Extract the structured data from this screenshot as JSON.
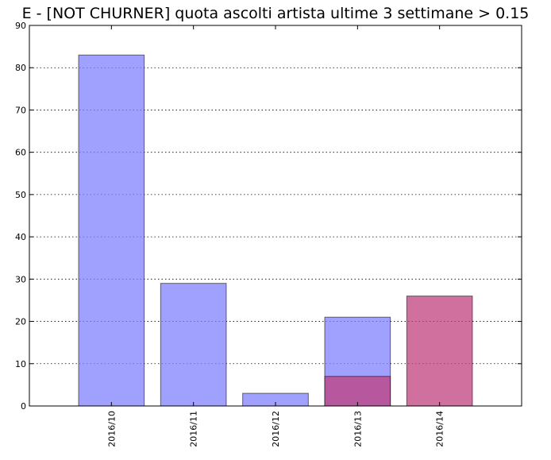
{
  "chart_data": {
    "type": "bar",
    "title": "E - [NOT CHURNER] quota ascolti artista ultime 3 settimane > 0.15",
    "categories": [
      "2016/10",
      "2016/11",
      "2016/12",
      "2016/13",
      "2016/14"
    ],
    "series": [
      {
        "values": [
          83,
          29,
          3,
          21,
          0
        ],
        "color": "#8080ff"
      },
      {
        "values": [
          0,
          0,
          0,
          7,
          26
        ],
        "color": "#bf407f"
      }
    ],
    "xlabel": "",
    "ylabel": "",
    "ylim": [
      0,
      90
    ],
    "yticks": [
      0,
      10,
      20,
      30,
      40,
      50,
      60,
      70,
      80,
      90
    ],
    "grid": true,
    "bar_overlay": true
  }
}
